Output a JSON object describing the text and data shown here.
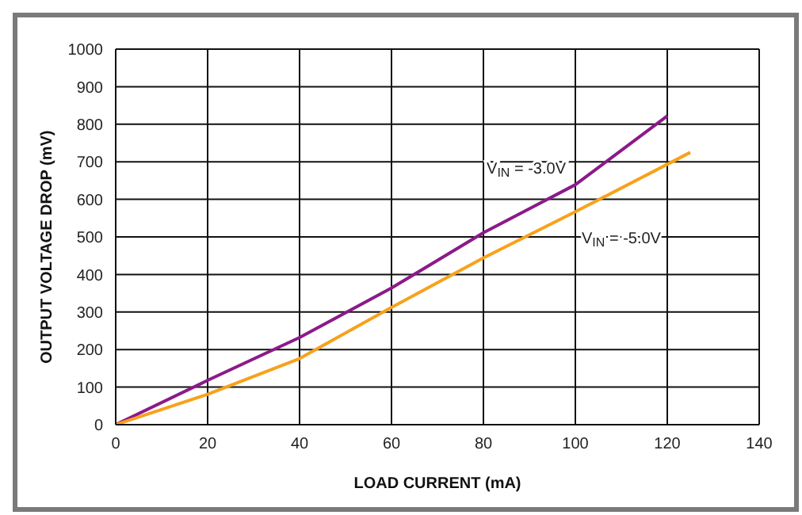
{
  "chart_data": {
    "type": "line",
    "xlabel": "LOAD CURRENT (mA)",
    "ylabel": "OUTPUT VOLTAGE DROP (mV)",
    "xlim": [
      0,
      140
    ],
    "xticks": [
      0,
      20,
      40,
      60,
      80,
      100,
      120,
      140
    ],
    "ylim": [
      0,
      1000
    ],
    "yticks": [
      0,
      100,
      200,
      300,
      400,
      500,
      600,
      700,
      800,
      900,
      1000
    ],
    "grid": true,
    "series": [
      {
        "name": "V$_{IN}$ = -3.0V",
        "color": "#8b1a89",
        "x": [
          0,
          20,
          40,
          60,
          80,
          100,
          120
        ],
        "values": [
          0,
          118,
          232,
          364,
          511,
          639,
          822
        ]
      },
      {
        "name": "V$_{IN}$ = -5.0V",
        "color": "#f7a21b",
        "x": [
          0,
          20,
          40,
          60,
          80,
          100,
          125
        ],
        "values": [
          0,
          81,
          176,
          312,
          444,
          567,
          725
        ]
      }
    ]
  }
}
